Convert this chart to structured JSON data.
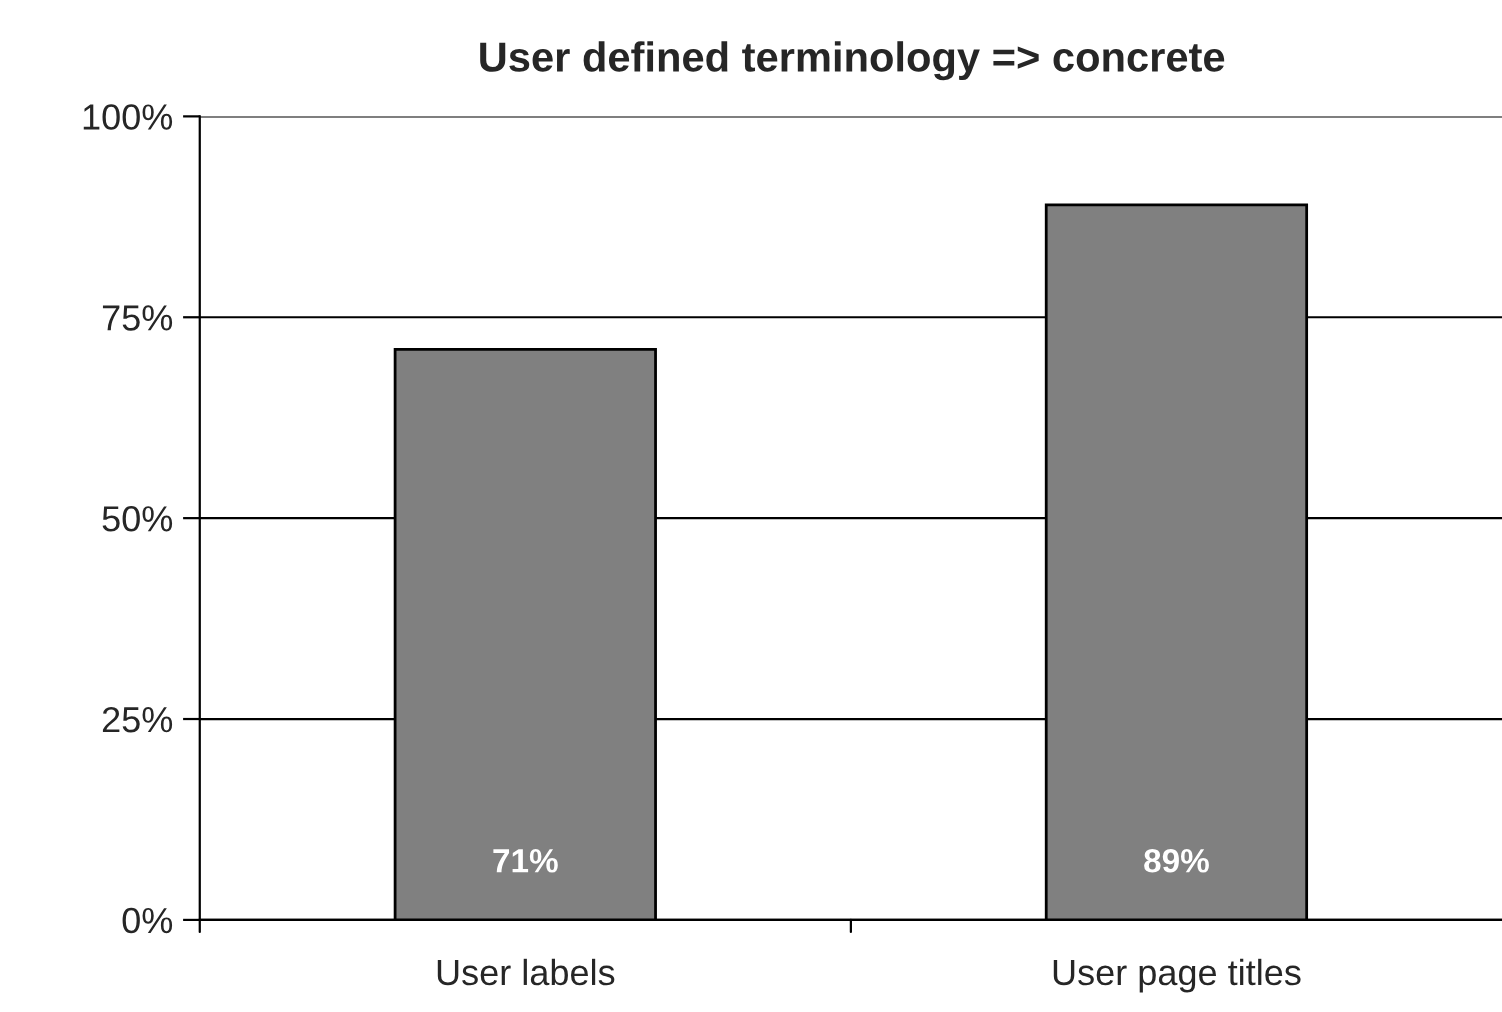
{
  "chart_data": {
    "type": "bar",
    "title": "User defined terminology => concrete",
    "categories": [
      "User labels",
      "User page titles"
    ],
    "values": [
      71,
      89
    ],
    "value_labels": [
      "71%",
      "89%"
    ],
    "color": "#808080",
    "ylim": [
      0,
      100
    ],
    "yticks": [
      {
        "value": 0,
        "label": "0%"
      },
      {
        "value": 25,
        "label": "25%"
      },
      {
        "value": 50,
        "label": "50%"
      },
      {
        "value": 75,
        "label": "75%"
      },
      {
        "value": 100,
        "label": "100%"
      }
    ],
    "grid": "y",
    "legend": false
  }
}
